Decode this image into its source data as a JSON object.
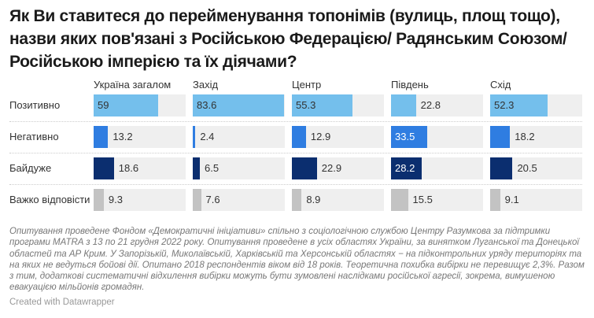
{
  "chart_data": {
    "type": "bar",
    "title": "Як Ви ставитеся до перейменування топонімів (вулиць, площ тощо), назви яких пов'язані з Російською Федерацією/ Радянським Союзом/Російською імперією та їх діячами?",
    "categories": [
      "Позитивно",
      "Негативно",
      "Байдуже",
      "Важко відповісти"
    ],
    "panels": [
      {
        "name": "Україна загалом",
        "values": [
          "59",
          "13.2",
          "18.6",
          "9.3"
        ]
      },
      {
        "name": "Захід",
        "values": [
          "83.6",
          "2.4",
          "6.5",
          "7.6"
        ]
      },
      {
        "name": "Центр",
        "values": [
          "55.3",
          "12.9",
          "22.9",
          "8.9"
        ]
      },
      {
        "name": "Південь",
        "values": [
          "22.8",
          "33.5",
          "28.2",
          "15.5"
        ]
      },
      {
        "name": "Схід",
        "values": [
          "52.3",
          "18.2",
          "20.5",
          "9.1"
        ]
      }
    ],
    "colors": [
      "#74bfec",
      "#2f7de1",
      "#0b2e6f",
      "#c3c3c3"
    ],
    "xlim": [
      0,
      83.6
    ]
  },
  "notes": "Опитування проведене Фондом «Демократичні ініціативи» спільно з соціологічною службою Центру Разумкова за підтримки програми MATRA з 13 по 21 грудня 2022 року. Опитування проведене в усіх областях України, за винятком Луганської та Донецької областей та АР Крим. У Запорізькій, Миколаївській, Харківській та Херсонській областях − на підконтрольних уряду територіях та на яких не ведуться бойові дії. Опитано 2018 респондентів віком від 18 років. Теоретична похибка вибірки не перевищує 2,3%. Разом з тим, додаткові систематичні відхилення вибірки можуть бути зумовлені наслідками російської агресії, зокрема, вимушеною евакуацією мільйонів громадян.",
  "credit": "Created with Datawrapper"
}
